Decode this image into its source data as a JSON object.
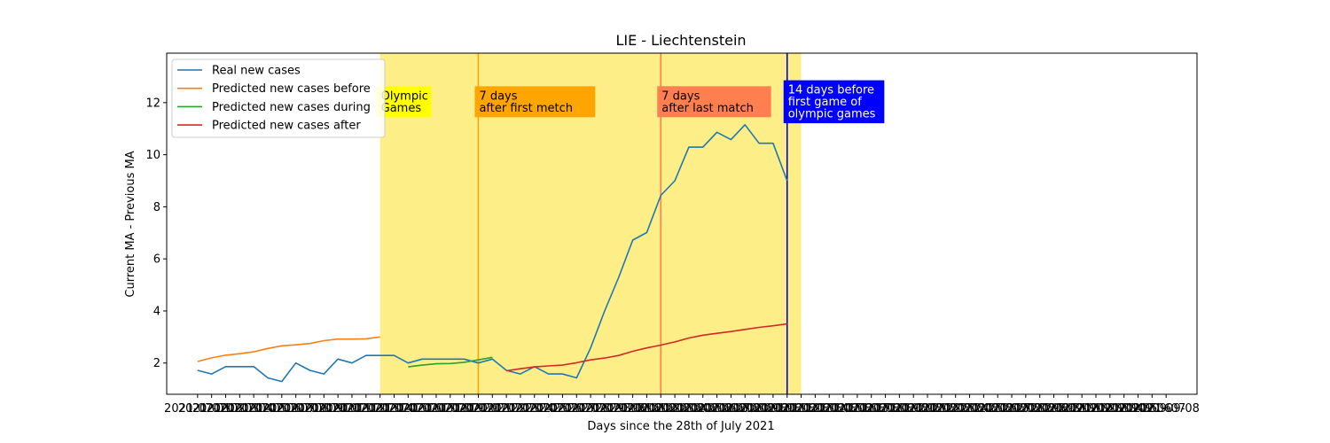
{
  "chart_data": {
    "type": "line",
    "title": "LIE - Liechtenstein",
    "xlabel": "Days since the 28th of July 2021",
    "ylabel": "Current MA - Previous MA",
    "ylim": [
      0.8,
      13.9
    ],
    "y_ticks": [
      2,
      4,
      6,
      8,
      10,
      12
    ],
    "x_tick_labels": [
      "2021-07-01",
      "2021-07-02",
      "2021-07-03",
      "2021-07-04",
      "2021-07-05",
      "2021-07-06",
      "2021-07-07",
      "2021-07-08",
      "2021-07-09",
      "2021-07-10",
      "2021-07-11",
      "2021-07-12",
      "2021-07-13",
      "2021-07-14",
      "2021-07-15",
      "2021-07-16",
      "2021-07-17",
      "2021-07-18",
      "2021-07-19",
      "2021-07-20",
      "2021-07-21",
      "2021-07-22",
      "2021-07-23",
      "2021-07-24",
      "2021-07-25",
      "2021-07-26",
      "2021-07-27",
      "2021-07-28",
      "2021-07-29",
      "2021-07-30",
      "2021-07-31",
      "2021-08-01",
      "2021-08-02",
      "2021-08-03",
      "2021-08-04",
      "2021-08-05",
      "2021-08-06",
      "2021-08-07",
      "2021-08-08",
      "2021-08-09",
      "2021-08-10",
      "2021-08-11",
      "2021-08-12",
      "2021-08-13",
      "2021-08-14",
      "2021-08-15",
      "2021-08-16",
      "2021-08-17",
      "2021-08-18",
      "2021-08-19",
      "2021-08-20",
      "2021-08-21",
      "2021-08-22",
      "2021-08-23",
      "2021-08-24",
      "2021-08-25",
      "2021-08-26",
      "2021-08-27",
      "2021-08-28",
      "2021-08-29",
      "2021-08-30",
      "2021-08-31",
      "2021-09-01",
      "2021-09-02",
      "2021-09-03",
      "2021-09-04",
      "2021-09-05",
      "2021-09-06",
      "2021-09-07",
      "2021-09-08"
    ],
    "series": [
      {
        "name": "Real new cases",
        "color": "#1f77b4",
        "points": [
          [
            0,
            1.72
          ],
          [
            1,
            1.58
          ],
          [
            2,
            1.86
          ],
          [
            3,
            1.86
          ],
          [
            4,
            1.86
          ],
          [
            5,
            1.43
          ],
          [
            6,
            1.29
          ],
          [
            7,
            2.0
          ],
          [
            8,
            1.72
          ],
          [
            9,
            1.58
          ],
          [
            10,
            2.15
          ],
          [
            11,
            2.0
          ],
          [
            12,
            2.29
          ],
          [
            13,
            2.29
          ],
          [
            14,
            2.29
          ],
          [
            15,
            2.0
          ],
          [
            16,
            2.15
          ],
          [
            17,
            2.15
          ],
          [
            18,
            2.15
          ],
          [
            19,
            2.15
          ],
          [
            20,
            2.0
          ],
          [
            21,
            2.15
          ],
          [
            22,
            1.72
          ],
          [
            23,
            1.58
          ],
          [
            24,
            1.86
          ],
          [
            25,
            1.58
          ],
          [
            26,
            1.58
          ],
          [
            27,
            1.43
          ],
          [
            28,
            2.58
          ],
          [
            29,
            4.0
          ],
          [
            30,
            5.29
          ],
          [
            31,
            6.72
          ],
          [
            32,
            7.01
          ],
          [
            33,
            8.44
          ],
          [
            34,
            9.0
          ],
          [
            35,
            10.29
          ],
          [
            36,
            10.29
          ],
          [
            37,
            10.86
          ],
          [
            38,
            10.58
          ],
          [
            39,
            11.15
          ],
          [
            40,
            10.44
          ],
          [
            41,
            10.44
          ],
          [
            42,
            9.0
          ]
        ]
      },
      {
        "name": "Predicted new cases before",
        "color": "#ff7f0e",
        "points": [
          [
            0,
            2.06
          ],
          [
            1,
            2.2
          ],
          [
            2,
            2.3
          ],
          [
            3,
            2.36
          ],
          [
            4,
            2.43
          ],
          [
            5,
            2.56
          ],
          [
            6,
            2.66
          ],
          [
            7,
            2.7
          ],
          [
            8,
            2.75
          ],
          [
            9,
            2.86
          ],
          [
            10,
            2.92
          ],
          [
            11,
            2.92
          ],
          [
            12,
            2.93
          ],
          [
            13,
            3.0
          ]
        ]
      },
      {
        "name": "Predicted new cases during",
        "color": "#2ca02c",
        "points": [
          [
            15,
            1.85
          ],
          [
            16,
            1.92
          ],
          [
            17,
            1.97
          ],
          [
            18,
            1.98
          ],
          [
            19,
            2.03
          ],
          [
            20,
            2.12
          ],
          [
            21,
            2.22
          ]
        ]
      },
      {
        "name": "Predicted new cases after",
        "color": "#d62728",
        "points": [
          [
            22,
            1.7
          ],
          [
            23,
            1.78
          ],
          [
            24,
            1.85
          ],
          [
            25,
            1.89
          ],
          [
            26,
            1.92
          ],
          [
            27,
            2.01
          ],
          [
            28,
            2.12
          ],
          [
            29,
            2.19
          ],
          [
            30,
            2.29
          ],
          [
            31,
            2.45
          ],
          [
            32,
            2.58
          ],
          [
            33,
            2.69
          ],
          [
            34,
            2.81
          ],
          [
            35,
            2.96
          ],
          [
            36,
            3.07
          ],
          [
            37,
            3.14
          ],
          [
            38,
            3.21
          ],
          [
            39,
            3.29
          ],
          [
            40,
            3.37
          ],
          [
            41,
            3.43
          ],
          [
            42,
            3.5
          ]
        ]
      }
    ],
    "shaded_region": {
      "x_start": 13.0,
      "x_end": 43.0,
      "color": "#fdee87"
    },
    "vertical_lines": [
      {
        "x": 20.0,
        "color": "#ffa500"
      },
      {
        "x": 33.0,
        "color": "#ff7f50"
      },
      {
        "x": 42.0,
        "color": "#0000c8"
      }
    ],
    "annotations": [
      {
        "x": 13.0,
        "y": 12.0,
        "lines": [
          "Olympic",
          "Games"
        ],
        "bg": "#ffff00",
        "text_color": "#000000"
      },
      {
        "x": 20.0,
        "y": 12.0,
        "lines": [
          "7 days",
          "after first metch"
        ],
        "bg": "#ffa500",
        "text_color": "#000000"
      },
      {
        "x": 33.0,
        "y": 12.0,
        "lines": [
          "7 days",
          "after last match"
        ],
        "bg": "#ff7f50",
        "text_color": "#000000"
      },
      {
        "x": 42.0,
        "y": 12.0,
        "lines": [
          "14 days before",
          "first game of",
          "olympic games"
        ],
        "bg": "#0000ff",
        "text_color": "#ffffff"
      }
    ],
    "legend_position": "top-left",
    "grid": false
  }
}
